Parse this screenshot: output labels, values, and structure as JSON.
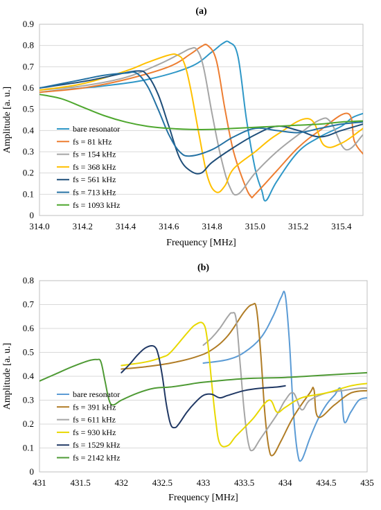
{
  "chart_data": [
    {
      "type": "line",
      "title": "(a)",
      "xlabel": "Frequency [MHz]",
      "ylabel": "Amplitude [a. u.]",
      "xlim": [
        314.0,
        315.5
      ],
      "ylim": [
        0,
        0.9
      ],
      "xticks": [
        "314.0",
        "314.2",
        "314.4",
        "314.6",
        "314.8",
        "315.0",
        "315.2",
        "315.4"
      ],
      "xtick_values": [
        314.0,
        314.2,
        314.4,
        314.6,
        314.8,
        315.0,
        315.2,
        315.4
      ],
      "yticks": [
        "0",
        "0.1",
        "0.2",
        "0.3",
        "0.4",
        "0.5",
        "0.6",
        "0.7",
        "0.8",
        "0.9"
      ],
      "ytick_values": [
        0,
        0.1,
        0.2,
        0.3,
        0.4,
        0.5,
        0.6,
        0.7,
        0.8,
        0.9
      ],
      "grid": "horizontal",
      "legend_position": "bottom-left",
      "series": [
        {
          "name": "bare resonator",
          "color": "#2e97c7",
          "x": [
            314.0,
            314.2,
            314.3,
            314.5,
            314.7,
            314.8,
            314.85,
            314.88,
            314.92,
            314.96,
            315.0,
            315.03,
            315.05,
            315.1,
            315.2,
            315.3,
            315.4,
            315.45,
            315.5
          ],
          "y": [
            0.58,
            0.6,
            0.61,
            0.64,
            0.7,
            0.77,
            0.81,
            0.815,
            0.75,
            0.45,
            0.22,
            0.12,
            0.07,
            0.16,
            0.3,
            0.37,
            0.42,
            0.46,
            0.48
          ]
        },
        {
          "name": "fs = 81 kHz",
          "color": "#ed7d31",
          "x": [
            314.0,
            314.2,
            314.4,
            314.6,
            314.7,
            314.75,
            314.78,
            314.82,
            314.86,
            314.9,
            314.95,
            314.98,
            315.0,
            315.1,
            315.2,
            315.3,
            315.43,
            315.46,
            315.5
          ],
          "y": [
            0.58,
            0.6,
            0.64,
            0.7,
            0.76,
            0.795,
            0.8,
            0.73,
            0.5,
            0.3,
            0.15,
            0.09,
            0.1,
            0.21,
            0.32,
            0.4,
            0.48,
            0.35,
            0.29
          ]
        },
        {
          "name": "fs = 154 kHz",
          "color": "#a5a5a5",
          "x": [
            314.0,
            314.2,
            314.4,
            314.55,
            314.65,
            314.7,
            314.73,
            314.76,
            314.8,
            314.84,
            314.88,
            314.92,
            315.0,
            315.1,
            315.2,
            315.3,
            315.35,
            315.42,
            315.5
          ],
          "y": [
            0.59,
            0.61,
            0.65,
            0.71,
            0.76,
            0.785,
            0.78,
            0.7,
            0.48,
            0.28,
            0.14,
            0.1,
            0.2,
            0.3,
            0.38,
            0.45,
            0.44,
            0.31,
            0.38
          ]
        },
        {
          "name": "fs = 368 kHz",
          "color": "#ffc000",
          "x": [
            314.0,
            314.2,
            314.4,
            314.5,
            314.6,
            314.64,
            314.67,
            314.7,
            314.74,
            314.78,
            314.82,
            314.86,
            314.9,
            315.0,
            315.1,
            315.25,
            315.32,
            315.4,
            315.5
          ],
          "y": [
            0.59,
            0.62,
            0.68,
            0.72,
            0.755,
            0.755,
            0.72,
            0.6,
            0.38,
            0.18,
            0.11,
            0.14,
            0.22,
            0.3,
            0.38,
            0.455,
            0.33,
            0.34,
            0.41
          ]
        },
        {
          "name": "fs = 561 kHz",
          "color": "#1f4e79",
          "x": [
            314.0,
            314.2,
            314.3,
            314.45,
            314.5,
            314.55,
            314.6,
            314.65,
            314.7,
            314.75,
            314.8,
            314.9,
            315.0,
            315.1,
            315.2,
            315.3,
            315.4,
            315.5
          ],
          "y": [
            0.6,
            0.63,
            0.65,
            0.68,
            0.66,
            0.57,
            0.42,
            0.27,
            0.21,
            0.2,
            0.25,
            0.32,
            0.38,
            0.42,
            0.4,
            0.37,
            0.4,
            0.43
          ]
        },
        {
          "name": "fs = 713 kHz",
          "color": "#2471a3",
          "x": [
            314.0,
            314.1,
            314.2,
            314.3,
            314.4,
            314.45,
            314.5,
            314.55,
            314.6,
            314.65,
            314.7,
            314.8,
            314.9,
            315.0,
            315.1,
            315.2,
            315.3,
            315.4,
            315.5
          ],
          "y": [
            0.6,
            0.62,
            0.64,
            0.66,
            0.67,
            0.67,
            0.61,
            0.5,
            0.38,
            0.3,
            0.28,
            0.31,
            0.37,
            0.41,
            0.4,
            0.39,
            0.41,
            0.43,
            0.44
          ]
        },
        {
          "name": "fs = 1093 kHz",
          "color": "#4ea72e",
          "x": [
            314.0,
            314.1,
            314.2,
            314.3,
            314.4,
            314.5,
            314.6,
            314.7,
            314.8,
            314.9,
            315.0,
            315.1,
            315.2,
            315.3,
            315.4,
            315.5
          ],
          "y": [
            0.57,
            0.55,
            0.51,
            0.47,
            0.44,
            0.42,
            0.41,
            0.405,
            0.405,
            0.41,
            0.415,
            0.42,
            0.425,
            0.43,
            0.44,
            0.445
          ]
        }
      ]
    },
    {
      "type": "line",
      "title": "(b)",
      "xlabel": "Frequency [MHz]",
      "ylabel": "Amplitude [a. u.]",
      "xlim": [
        431,
        435
      ],
      "ylim": [
        0,
        0.8
      ],
      "xticks": [
        "431",
        "431.5",
        "432",
        "432.5",
        "433",
        "433.5",
        "434",
        "434.5",
        "435"
      ],
      "xtick_values": [
        431,
        431.5,
        432,
        432.5,
        433,
        433.5,
        434,
        434.5,
        435
      ],
      "yticks": [
        "0",
        "0.1",
        "0.2",
        "0.3",
        "0.4",
        "0.5",
        "0.6",
        "0.7",
        "0.8"
      ],
      "ytick_values": [
        0,
        0.1,
        0.2,
        0.3,
        0.4,
        0.5,
        0.6,
        0.7,
        0.8
      ],
      "grid": "horizontal",
      "legend_position": "bottom-left",
      "series": [
        {
          "name": "bare resonator",
          "color": "#5b9bd5",
          "x": [
            433.0,
            433.3,
            433.5,
            433.7,
            433.85,
            433.95,
            434.0,
            434.05,
            434.1,
            434.15,
            434.2,
            434.3,
            434.4,
            434.5,
            434.6,
            434.68,
            434.72,
            434.8,
            434.9,
            435.0
          ],
          "y": [
            0.455,
            0.47,
            0.5,
            0.56,
            0.65,
            0.73,
            0.74,
            0.55,
            0.25,
            0.08,
            0.05,
            0.14,
            0.22,
            0.28,
            0.32,
            0.345,
            0.21,
            0.25,
            0.3,
            0.31
          ]
        },
        {
          "name": "fs = 391 kHz",
          "color": "#b07c25",
          "x": [
            432.0,
            432.3,
            432.6,
            432.9,
            433.1,
            433.3,
            433.5,
            433.6,
            433.65,
            433.7,
            433.75,
            433.8,
            433.85,
            433.95,
            434.1,
            434.3,
            434.35,
            434.4,
            434.6,
            434.8,
            435.0
          ],
          "y": [
            0.43,
            0.44,
            0.455,
            0.48,
            0.51,
            0.57,
            0.67,
            0.7,
            0.68,
            0.5,
            0.25,
            0.1,
            0.07,
            0.13,
            0.23,
            0.33,
            0.345,
            0.23,
            0.28,
            0.33,
            0.34
          ]
        },
        {
          "name": "fs = 611 kHz",
          "color": "#a5a5a5",
          "x": [
            433.0,
            433.1,
            433.2,
            433.3,
            433.35,
            433.4,
            433.45,
            433.5,
            433.55,
            433.6,
            433.7,
            433.9,
            434.0,
            434.1,
            434.2,
            434.3,
            434.5,
            434.7,
            434.9,
            435.0
          ],
          "y": [
            0.53,
            0.56,
            0.6,
            0.65,
            0.665,
            0.64,
            0.45,
            0.25,
            0.12,
            0.09,
            0.14,
            0.24,
            0.3,
            0.33,
            0.26,
            0.3,
            0.33,
            0.34,
            0.35,
            0.35
          ]
        },
        {
          "name": "fs = 930 kHz",
          "color": "#e8d800",
          "x": [
            432.0,
            432.3,
            432.5,
            432.6,
            432.8,
            432.9,
            433.0,
            433.05,
            433.1,
            433.15,
            433.2,
            433.3,
            433.4,
            433.6,
            433.8,
            433.9,
            434.0,
            434.2,
            434.5,
            434.8,
            435.0
          ],
          "y": [
            0.445,
            0.46,
            0.48,
            0.5,
            0.58,
            0.615,
            0.62,
            0.55,
            0.38,
            0.22,
            0.12,
            0.11,
            0.15,
            0.22,
            0.3,
            0.25,
            0.27,
            0.31,
            0.33,
            0.36,
            0.37
          ]
        },
        {
          "name": "fs = 1529 kHz",
          "color": "#203864",
          "x": [
            432.0,
            432.1,
            432.2,
            432.3,
            432.4,
            432.45,
            432.5,
            432.55,
            432.6,
            432.65,
            432.7,
            432.8,
            432.9,
            433.0,
            433.1,
            433.2,
            433.3,
            433.5,
            433.7,
            433.9,
            434.0
          ],
          "y": [
            0.415,
            0.45,
            0.49,
            0.52,
            0.525,
            0.49,
            0.4,
            0.28,
            0.2,
            0.185,
            0.2,
            0.25,
            0.29,
            0.32,
            0.325,
            0.31,
            0.32,
            0.34,
            0.35,
            0.355,
            0.36
          ]
        },
        {
          "name": "fs = 2142 kHz",
          "color": "#4e9a34",
          "x": [
            431.0,
            431.2,
            431.4,
            431.6,
            431.7,
            431.75,
            431.8,
            431.85,
            431.9,
            432.0,
            432.2,
            432.4,
            432.6,
            432.8,
            433.0,
            433.5,
            434.0,
            434.5,
            435.0
          ],
          "y": [
            0.38,
            0.41,
            0.44,
            0.465,
            0.47,
            0.46,
            0.38,
            0.3,
            0.28,
            0.3,
            0.33,
            0.35,
            0.355,
            0.365,
            0.375,
            0.39,
            0.395,
            0.405,
            0.415
          ]
        }
      ]
    }
  ]
}
